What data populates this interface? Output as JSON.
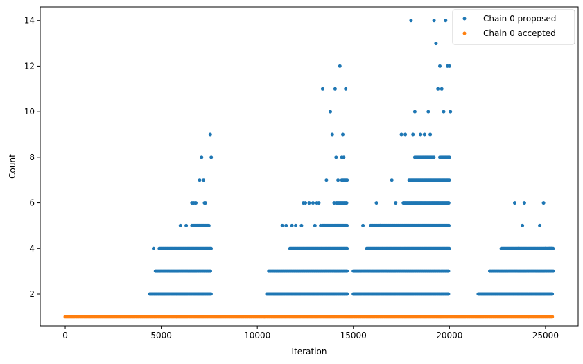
{
  "chart_data": {
    "type": "scatter",
    "xlabel": "Iteration",
    "ylabel": "Count",
    "xlim": [
      -1300,
      26700
    ],
    "ylim": [
      0.6,
      14.6
    ],
    "xticks": [
      0,
      5000,
      10000,
      15000,
      20000,
      25000
    ],
    "yticks": [
      2,
      4,
      6,
      8,
      10,
      12,
      14
    ],
    "grid": false,
    "legend_position": "top-right",
    "x_max_iteration": 25400,
    "series": [
      {
        "name": "Chain 0 proposed",
        "color": "#1f77b4",
        "points": [
          [
            4600,
            4
          ],
          [
            6000,
            5
          ],
          [
            6300,
            5
          ],
          [
            6600,
            6
          ],
          [
            6700,
            6
          ],
          [
            6800,
            6
          ],
          [
            7000,
            7
          ],
          [
            7100,
            8
          ],
          [
            7200,
            7
          ],
          [
            7250,
            6
          ],
          [
            7300,
            6
          ],
          [
            7550,
            9
          ],
          [
            7600,
            8
          ],
          [
            11300,
            5
          ],
          [
            11500,
            5
          ],
          [
            11800,
            5
          ],
          [
            12000,
            5
          ],
          [
            12300,
            5
          ],
          [
            12400,
            6
          ],
          [
            12500,
            6
          ],
          [
            12700,
            6
          ],
          [
            12900,
            6
          ],
          [
            13000,
            5
          ],
          [
            13100,
            6
          ],
          [
            13200,
            6
          ],
          [
            13300,
            5
          ],
          [
            13400,
            11
          ],
          [
            13600,
            7
          ],
          [
            13800,
            10
          ],
          [
            13900,
            9
          ],
          [
            14000,
            6
          ],
          [
            14050,
            11
          ],
          [
            14100,
            8
          ],
          [
            14200,
            7
          ],
          [
            14300,
            12
          ],
          [
            14400,
            8
          ],
          [
            14450,
            9
          ],
          [
            14500,
            8
          ],
          [
            14600,
            11
          ],
          [
            15500,
            5
          ],
          [
            16200,
            6
          ],
          [
            16400,
            5
          ],
          [
            17000,
            7
          ],
          [
            17200,
            6
          ],
          [
            17500,
            9
          ],
          [
            17700,
            9
          ],
          [
            18000,
            14
          ],
          [
            18100,
            9
          ],
          [
            18200,
            10
          ],
          [
            18500,
            9
          ],
          [
            18700,
            9
          ],
          [
            18900,
            10
          ],
          [
            19000,
            9
          ],
          [
            19200,
            14
          ],
          [
            19300,
            13
          ],
          [
            19400,
            11
          ],
          [
            19500,
            12
          ],
          [
            19600,
            11
          ],
          [
            19700,
            10
          ],
          [
            19800,
            14
          ],
          [
            19900,
            12
          ],
          [
            20000,
            12
          ],
          [
            20050,
            10
          ],
          [
            23400,
            6
          ],
          [
            23600,
            4
          ],
          [
            23800,
            5
          ],
          [
            23900,
            6
          ],
          [
            24700,
            5
          ],
          [
            24900,
            6
          ],
          [
            25000,
            4
          ],
          [
            25200,
            4
          ],
          [
            25300,
            4
          ]
        ],
        "bands": [
          {
            "y": 2,
            "x_ranges": [
              [
                4400,
                7600
              ],
              [
                10500,
                14700
              ],
              [
                15000,
                20000
              ],
              [
                21500,
                25400
              ]
            ]
          },
          {
            "y": 3,
            "x_ranges": [
              [
                4700,
                7600
              ],
              [
                10600,
                14700
              ],
              [
                15000,
                20000
              ],
              [
                22100,
                25400
              ]
            ]
          },
          {
            "y": 4,
            "x_ranges": [
              [
                4900,
                7600
              ],
              [
                11700,
                14700
              ],
              [
                15700,
                20000
              ],
              [
                22700,
                25400
              ]
            ]
          },
          {
            "y": 5,
            "x_ranges": [
              [
                6600,
                7500
              ],
              [
                13400,
                14700
              ],
              [
                15900,
                20000
              ]
            ]
          },
          {
            "y": 6,
            "x_ranges": [
              [
                14100,
                14700
              ],
              [
                17600,
                20000
              ]
            ]
          },
          {
            "y": 7,
            "x_ranges": [
              [
                14400,
                14700
              ],
              [
                17900,
                20000
              ]
            ]
          },
          {
            "y": 8,
            "x_ranges": [
              [
                18200,
                19200
              ],
              [
                19500,
                20000
              ]
            ]
          }
        ]
      },
      {
        "name": "Chain 0 accepted",
        "color": "#ff7f0e",
        "points": [],
        "bands": [
          {
            "y": 1,
            "x_ranges": [
              [
                0,
                25400
              ]
            ]
          }
        ]
      }
    ]
  }
}
